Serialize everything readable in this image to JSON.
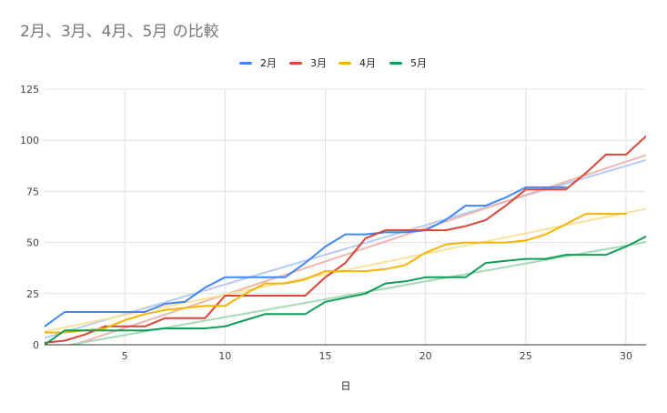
{
  "chart_data": {
    "type": "line",
    "title": "2月、3月、4月、5月 の比較",
    "xlabel": "日",
    "ylabel": "",
    "xlim": [
      1,
      31
    ],
    "ylim": [
      0,
      125
    ],
    "xticks": [
      5,
      10,
      15,
      20,
      25,
      30
    ],
    "yticks": [
      0,
      25,
      50,
      75,
      100,
      125
    ],
    "grid": true,
    "legend_position": "top",
    "x": [
      1,
      2,
      3,
      4,
      5,
      6,
      7,
      8,
      9,
      10,
      11,
      12,
      13,
      14,
      15,
      16,
      17,
      18,
      19,
      20,
      21,
      22,
      23,
      24,
      25,
      26,
      27,
      28,
      29,
      30,
      31
    ],
    "series": [
      {
        "name": "2月",
        "color": "#4285f4",
        "trend_color": "#b5cbf8",
        "values": [
          9,
          16,
          16,
          16,
          16,
          16,
          20,
          21,
          28,
          33,
          33,
          33,
          33,
          40,
          48,
          54,
          54,
          55,
          55,
          56,
          61,
          68,
          68,
          72,
          77,
          77,
          77,
          null,
          null,
          null,
          null
        ],
        "trend": [
          0.5,
          2.9
        ]
      },
      {
        "name": "3月",
        "color": "#db4437",
        "trend_color": "#f2b5ae",
        "values": [
          1,
          2,
          5,
          9,
          9,
          9,
          13,
          13,
          13,
          24,
          24,
          24,
          24,
          24,
          33,
          40,
          52,
          56,
          56,
          56,
          56,
          58,
          61,
          68,
          76,
          76,
          76,
          84,
          93,
          93,
          102
        ],
        "trend": [
          -8,
          3.25
        ]
      },
      {
        "name": "4月",
        "color": "#f4b400",
        "trend_color": "#f9e39a",
        "values": [
          6,
          6,
          7,
          8,
          12,
          15,
          17,
          18,
          19,
          19,
          25,
          30,
          30,
          32,
          36,
          36,
          36,
          37,
          39,
          45,
          49,
          50,
          50,
          50,
          51,
          54,
          59,
          64,
          64,
          64,
          null
        ],
        "trend": [
          4.5,
          2.0
        ]
      },
      {
        "name": "5月",
        "color": "#0f9d58",
        "trend_color": "#a6d9b8",
        "values": [
          0,
          7,
          7,
          7,
          7,
          7,
          8,
          8,
          8,
          9,
          12,
          15,
          15,
          15,
          21,
          23,
          25,
          30,
          31,
          33,
          33,
          33,
          40,
          41,
          42,
          42,
          44,
          44,
          44,
          48,
          53
        ],
        "trend": [
          -4,
          1.75
        ]
      }
    ]
  }
}
